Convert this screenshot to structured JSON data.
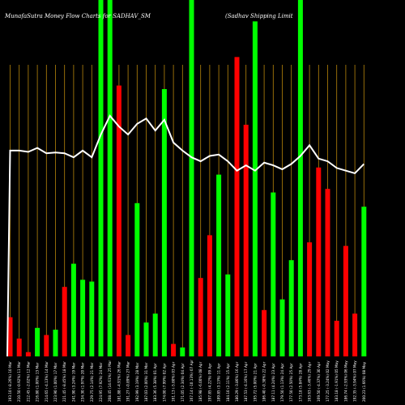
{
  "chart_data": {
    "type": "bar",
    "title_left": "MunafaSutra  Money Flow  Charts for SADHAV_SM",
    "title_right": "(Sadhav   Shipping Limit",
    "bar_colors": {
      "up": "#00ff00",
      "down": "#ff0000"
    },
    "gridline_color": "#b8860b",
    "line_color": "#ffffff",
    "value_range": [
      0,
      100
    ],
    "bars": [
      {
        "label": "193.10 (-8.26%) 10 Mar",
        "value": 11,
        "direction": "down"
      },
      {
        "label": "210.50 (-0.92%) 11 Mar",
        "value": 5,
        "direction": "down"
      },
      {
        "label": "212.45 (-2.02%) 12 Mar",
        "value": 1.2,
        "direction": "down"
      },
      {
        "label": "216.80 (1.00%) 13 Mar",
        "value": 8,
        "direction": "up"
      },
      {
        "label": "214.65 (-4.13%) 14 Mar",
        "value": 6,
        "direction": "down"
      },
      {
        "label": "223.90 (1.00%) 17 Mar",
        "value": 7.5,
        "direction": "up"
      },
      {
        "label": "221.45 (-8.45%) 18 Mar",
        "value": 19.5,
        "direction": "down"
      },
      {
        "label": "241.90 (3.24%) 19 Mar",
        "value": 26,
        "direction": "up"
      },
      {
        "label": "234.30 (1.97%) 20 Mar",
        "value": 21.5,
        "direction": "up"
      },
      {
        "label": "229.75 (2.14%) 21 Mar",
        "value": 21,
        "direction": "up"
      },
      {
        "label": "224.95 (7.92%) 24 Mar",
        "value": 100,
        "direction": "up"
      },
      {
        "label": "208.45 (14.61%) 25 Mar",
        "value": 100,
        "direction": "up"
      },
      {
        "label": "181.88 (-4.91%) 26 Mar",
        "value": 76,
        "direction": "down"
      },
      {
        "label": "191.27 (-0.89%) 27 Mar",
        "value": 6,
        "direction": "down"
      },
      {
        "label": "192.99 (3.19%) 28 Mar",
        "value": 43,
        "direction": "up"
      },
      {
        "label": "187.03 (2.00%) 31 Mar",
        "value": 9.5,
        "direction": "up"
      },
      {
        "label": "183.36 (5.38%) 01 Apr",
        "value": 12,
        "direction": "up"
      },
      {
        "label": "174.00 (7.99%) 02 Apr",
        "value": 75,
        "direction": "up"
      },
      {
        "label": "161.13 (-5.80%) 03 Apr",
        "value": 3.5,
        "direction": "down"
      },
      {
        "label": "171.05 (2.34%) 04 Apr",
        "value": 2.5,
        "direction": "up"
      },
      {
        "label": "167.14 (-10.13%) 07 Apr",
        "value": 100,
        "direction": "up"
      },
      {
        "label": "185.98 (-6.00%) 08 Apr",
        "value": 22,
        "direction": "down"
      },
      {
        "label": "197.85 (4.22%) 09 Apr",
        "value": 34,
        "direction": "down"
      },
      {
        "label": "189.85 (3.13%) 11 Apr",
        "value": 51,
        "direction": "up"
      },
      {
        "label": "184.10 (2.11%) 15 Apr",
        "value": 23,
        "direction": "up"
      },
      {
        "label": "180.29 (-3.86%) 16 Apr",
        "value": 84,
        "direction": "down"
      },
      {
        "label": "187.53 (-4.16%) 17 Apr",
        "value": 65,
        "direction": "down"
      },
      {
        "label": "195.72 (5.00%) 21 Apr",
        "value": 94,
        "direction": "up"
      },
      {
        "label": "186.40 (-0.38%) 22 Apr",
        "value": 13,
        "direction": "down"
      },
      {
        "label": "187.11 (4.24%) 23 Apr",
        "value": 46,
        "direction": "up"
      },
      {
        "label": "179.50 (1.13%) 24 Apr",
        "value": 16,
        "direction": "up"
      },
      {
        "label": "177.50 (2.50%) 25 Apr",
        "value": 27,
        "direction": "up"
      },
      {
        "label": "173.18 (5.84%) 28 Apr",
        "value": 100,
        "direction": "up"
      },
      {
        "label": "163.63 (-3.46%) 29 Apr",
        "value": 32,
        "direction": "down"
      },
      {
        "label": "169.50 (-4.37%) 30 Apr",
        "value": 53,
        "direction": "down"
      },
      {
        "label": "177.25 (-3.24%) 02 May",
        "value": 47,
        "direction": "down"
      },
      {
        "label": "183.18 (-1.91%) 05 May",
        "value": 10,
        "direction": "down"
      },
      {
        "label": "186.74 (-2.93%) 06 May",
        "value": 31,
        "direction": "down"
      },
      {
        "label": "192.35 (-3.94%) 07 May",
        "value": 12,
        "direction": "down"
      },
      {
        "label": "200.23 (1.66%) 08 May",
        "value": 42,
        "direction": "up"
      }
    ],
    "line_values": [
      0,
      77,
      77,
      76.5,
      78,
      76,
      76.3,
      76,
      74.5,
      77,
      74.5,
      83,
      90,
      86,
      83,
      87,
      89,
      84.5,
      88.5,
      80,
      77,
      74.5,
      73,
      75,
      75.5,
      73,
      69.5,
      71.5,
      69.5,
      72.5,
      71.5,
      70,
      72,
      75,
      79,
      74,
      73,
      70.5,
      69.5,
      68.5,
      72
    ]
  }
}
